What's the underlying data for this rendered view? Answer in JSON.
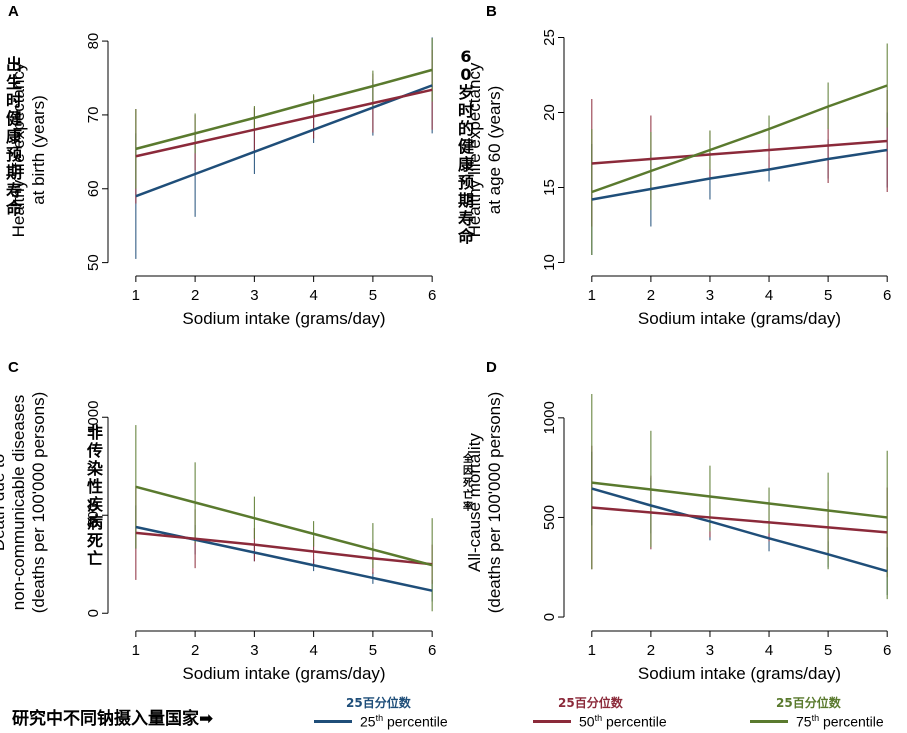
{
  "legend": {
    "country_note": "研究中不同钠摄入量国家➡",
    "items": [
      {
        "cn": "25百分位数",
        "label": "25",
        "sup": "th",
        "rest": " percentile",
        "color": "#1f4e79"
      },
      {
        "cn": "25百分位数",
        "label": "50",
        "sup": "th",
        "rest": " percentile",
        "color": "#8b2a3a"
      },
      {
        "cn": "25百分位数",
        "label": "75",
        "sup": "th",
        "rest": " percentile",
        "color": "#5a7a2e"
      }
    ]
  },
  "series_colors": [
    "#1f4e79",
    "#8b2a3a",
    "#5a7a2e"
  ],
  "chart_data": [
    {
      "type": "line",
      "panel": "A",
      "ylabel_cn": [
        "出",
        "生",
        "时",
        "健",
        "康",
        "预",
        "期",
        "寿",
        "命"
      ],
      "ylabel": [
        "Healthy life expectancy",
        "at birth (years)"
      ],
      "xlabel": "Sodium intake (grams/day)",
      "x": [
        1,
        2,
        3,
        4,
        5,
        6
      ],
      "xlim": [
        0.8,
        6.2
      ],
      "ylim": [
        49,
        81.5
      ],
      "yticks": [
        50,
        60,
        70,
        80
      ],
      "series": [
        {
          "values": [
            59.0,
            62.0,
            65.0,
            68.0,
            71.0,
            74.0
          ],
          "lower": [
            50.5,
            56.2,
            62.0,
            66.2,
            67.2,
            67.5
          ],
          "upper": [
            67.5,
            67.8,
            68.0,
            69.8,
            74.8,
            80.5
          ]
        },
        {
          "values": [
            64.4,
            66.2,
            68.0,
            69.8,
            71.6,
            73.4
          ],
          "lower": [
            58.0,
            62.5,
            65.0,
            66.8,
            67.6,
            68.0
          ],
          "upper": [
            70.8,
            70.0,
            71.0,
            72.6,
            75.6,
            78.8
          ]
        },
        {
          "values": [
            65.4,
            67.5,
            69.6,
            71.8,
            73.9,
            76.1
          ],
          "lower": [
            60.0,
            64.8,
            68.0,
            70.2,
            71.0,
            71.8
          ],
          "upper": [
            70.8,
            70.2,
            71.2,
            72.8,
            76.0,
            80.4
          ]
        }
      ]
    },
    {
      "type": "line",
      "panel": "B",
      "ylabel_cn": [
        "6",
        "0",
        "岁",
        "时",
        "的",
        "健",
        "康",
        "预",
        "期",
        "寿",
        "命"
      ],
      "ylabel": [
        "Healthy life expectancy",
        "at age 60 (years)"
      ],
      "xlabel": "Sodium intake (grams/day)",
      "x": [
        1,
        2,
        3,
        4,
        5,
        6
      ],
      "xlim": [
        0.8,
        6.2
      ],
      "ylim": [
        9.5,
        25.5
      ],
      "yticks": [
        10,
        15,
        20,
        25
      ],
      "series": [
        {
          "values": [
            14.2,
            14.9,
            15.6,
            16.2,
            16.9,
            17.5
          ],
          "lower": [
            10.5,
            12.4,
            14.2,
            15.4,
            15.6,
            15.0
          ],
          "upper": [
            17.9,
            17.4,
            17.0,
            17.0,
            18.2,
            20.0
          ]
        },
        {
          "values": [
            16.6,
            16.9,
            17.2,
            17.5,
            17.8,
            18.1
          ],
          "lower": [
            12.4,
            14.2,
            15.6,
            16.2,
            15.3,
            14.7
          ],
          "upper": [
            20.9,
            19.8,
            18.8,
            18.8,
            20.3,
            21.5
          ]
        },
        {
          "values": [
            14.7,
            16.1,
            17.5,
            18.9,
            20.4,
            21.8
          ],
          "lower": [
            10.5,
            13.5,
            16.2,
            17.9,
            18.9,
            19.0
          ],
          "upper": [
            18.9,
            18.7,
            18.8,
            19.8,
            22.0,
            24.6
          ]
        }
      ]
    },
    {
      "type": "line",
      "panel": "C",
      "ylabel_cn": [
        "非",
        "传",
        "染",
        "性",
        "疾",
        "病",
        "死",
        "亡"
      ],
      "ylabel": [
        "Death due to",
        "non-communicable diseases",
        "(deaths per 100'000 persons)"
      ],
      "xlabel": "Sodium intake (grams/day)",
      "x": [
        1,
        2,
        3,
        4,
        5,
        6
      ],
      "xlim": [
        0.8,
        6.2
      ],
      "ylim": [
        -60,
        1190
      ],
      "yticks": [
        0,
        500,
        1000
      ],
      "series": [
        {
          "values": [
            440,
            375,
            310,
            245,
            180,
            115
          ],
          "lower": [
            330,
            300,
            265,
            215,
            150,
            60
          ],
          "upper": [
            550,
            450,
            355,
            275,
            210,
            170
          ]
        },
        {
          "values": [
            410,
            380,
            350,
            315,
            280,
            250
          ],
          "lower": [
            170,
            230,
            265,
            240,
            200,
            150
          ],
          "upper": [
            650,
            530,
            435,
            390,
            360,
            350
          ]
        },
        {
          "values": [
            645,
            565,
            485,
            405,
            325,
            245
          ],
          "lower": [
            330,
            360,
            380,
            340,
            230,
            10
          ],
          "upper": [
            960,
            770,
            595,
            470,
            460,
            485
          ]
        }
      ]
    },
    {
      "type": "line",
      "panel": "D",
      "ylabel_cn": [
        "全",
        "因",
        "死",
        "亡",
        "率"
      ],
      "ylabel": [
        "All-cause mortality",
        "(deaths per 100'000 persons)"
      ],
      "xlabel": "Sodium intake (grams/day)",
      "x": [
        1,
        2,
        3,
        4,
        5,
        6
      ],
      "xlim": [
        0.8,
        6.2
      ],
      "ylim": [
        -40,
        1190
      ],
      "yticks": [
        0,
        500,
        1000
      ],
      "series": [
        {
          "values": [
            645,
            560,
            480,
            395,
            315,
            230
          ],
          "lower": [
            460,
            420,
            385,
            330,
            250,
            110
          ],
          "upper": [
            830,
            700,
            575,
            460,
            380,
            350
          ]
        },
        {
          "values": [
            550,
            525,
            500,
            475,
            450,
            425
          ],
          "lower": [
            240,
            340,
            400,
            380,
            320,
            200
          ],
          "upper": [
            860,
            710,
            600,
            570,
            580,
            650
          ]
        },
        {
          "values": [
            675,
            640,
            605,
            570,
            535,
            500
          ],
          "lower": [
            240,
            350,
            430,
            420,
            240,
            90
          ],
          "upper": [
            1120,
            935,
            760,
            650,
            725,
            835
          ]
        }
      ]
    }
  ]
}
